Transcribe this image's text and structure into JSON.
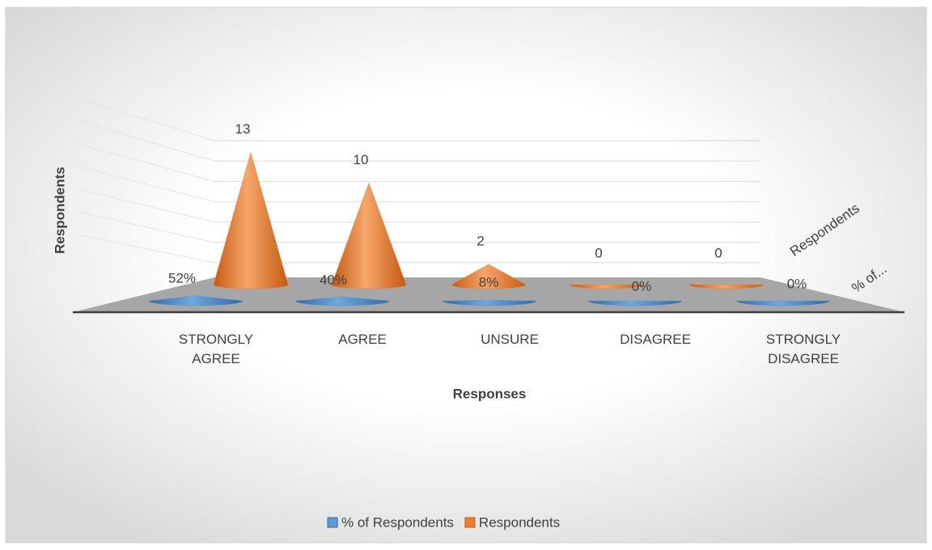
{
  "chart_data": {
    "type": "cone3d",
    "categories": [
      "STRONGLY AGREE",
      "AGREE",
      "UNSURE",
      "DISAGREE",
      "STRONGLY DISAGREE"
    ],
    "series": [
      {
        "name": "% of Respondents",
        "color": "#5b9bd5",
        "values": [
          0.52,
          0.4,
          0.08,
          0,
          0
        ],
        "value_labels": [
          "52%",
          "40%",
          "8%",
          "0%",
          "0%"
        ]
      },
      {
        "name": "Respondents",
        "color": "#ed7d31",
        "values": [
          13,
          10,
          2,
          0,
          0
        ]
      }
    ],
    "depth_labels": [
      "% of...",
      "Respondents"
    ],
    "y_label": "Respondents",
    "x_label": "Responses",
    "ylim": [
      0,
      14
    ],
    "yticks": [
      2,
      4,
      6,
      8,
      10,
      12,
      14
    ],
    "grid": true,
    "legend": "bottom"
  }
}
